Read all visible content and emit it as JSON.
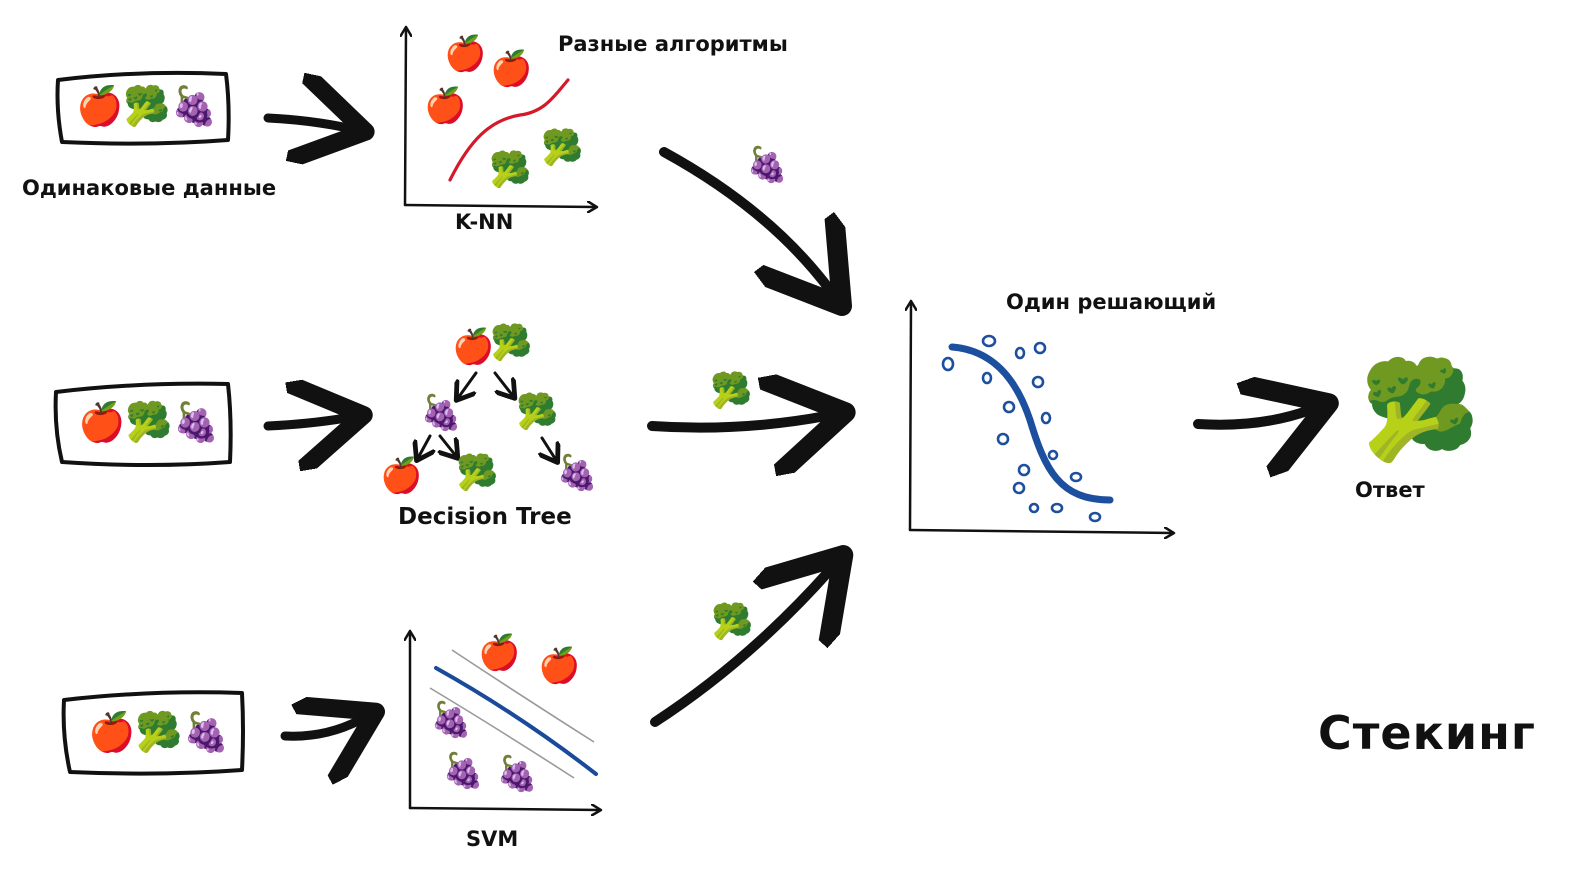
{
  "labels": {
    "same_data": "Одинаковые данные",
    "different_algorithms": "Разные алгоритмы",
    "knn": "K-NN",
    "decision_tree": "Decision Tree",
    "svm": "SVM",
    "meta_model": "Один решающий",
    "answer": "Ответ",
    "title": "Стекинг"
  },
  "icons": {
    "apple": "🍎",
    "broccoli": "🥦",
    "grapes": "🍇",
    "data_box_items": "🍎🥦🍇"
  },
  "colors": {
    "ink": "#111111",
    "knn_boundary": "#d4192a",
    "svm_boundary": "#1a4a9a",
    "svm_margin": "#9a9a9a",
    "meta_curve": "#1d4f9f",
    "meta_points": "#1d4f9f"
  }
}
